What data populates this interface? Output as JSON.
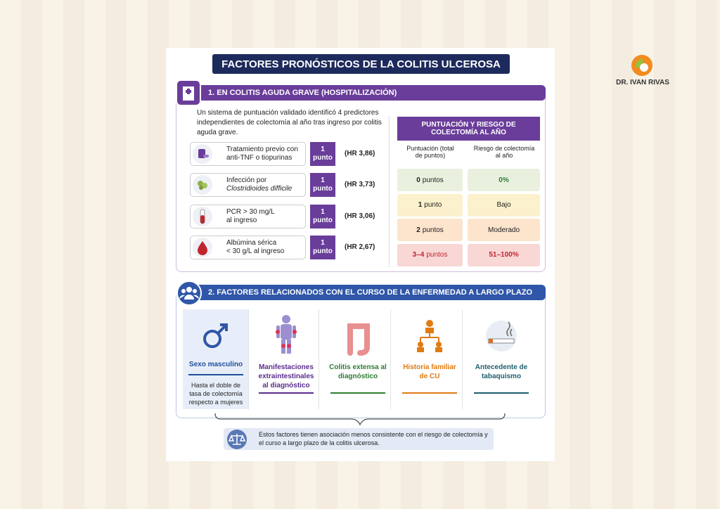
{
  "title": "FACTORES PRONÓSTICOS DE LA COLITIS ULCEROSA",
  "logo": {
    "name": "DR. IVAN RIVAS"
  },
  "section1": {
    "heading": "1. EN COLITIS AGUDA GRAVE (HOSPITALIZACIÓN)",
    "intro": "Un sistema de puntuación validado identificó 4 predictores independientes de colectomía al año tras ingreso por colitis aguda grave.",
    "predictors": [
      {
        "lines": [
          "Tratamiento previo con",
          "anti-TNF o tiopurinas"
        ],
        "points": "1 punto",
        "hr": "(HR 3,86)"
      },
      {
        "lines": [
          "Infección por",
          "Clostridioides difficile"
        ],
        "points": "1 punto",
        "hr": "(HR 3,73)"
      },
      {
        "lines": [
          "PCR > 30 mg/L",
          "al ingreso"
        ],
        "points": "1 punto",
        "hr": "(HR 3,06)"
      },
      {
        "lines": [
          "Albúmina sérica",
          "< 30 g/L al ingreso"
        ],
        "points": "1 punto",
        "hr": "(HR 2,67)"
      }
    ],
    "table": {
      "title": "PUNTUACIÓN Y RIESGO DE COLECTOMÍA AL AÑO",
      "columns": [
        "Puntuación (total de puntos)",
        "Riesgo de colectomía al año"
      ],
      "rows": [
        {
          "number": "0",
          "unit": "puntos",
          "risk": "0%"
        },
        {
          "number": "1",
          "unit": "punto",
          "risk": "Bajo"
        },
        {
          "number": "2",
          "unit": "puntos",
          "risk": "Moderado"
        },
        {
          "number": "3–4",
          "unit": "puntos",
          "risk": "51–100%"
        }
      ]
    }
  },
  "section2": {
    "heading": "2. FACTORES RELACIONADOS CON EL CURSO DE LA ENFERMEDAD A LARGO PLAZO",
    "factors": [
      {
        "title": "Sexo masculino",
        "description": "Hasta el doble de tasa de colectomía respecto a mujeres"
      },
      {
        "title": "Manifestaciones extraintestinales al diagnóstico"
      },
      {
        "title": "Colitis extensa al diagnóstico"
      },
      {
        "title": "Historia familiar de CU"
      },
      {
        "title": "Antecedente de tabaquismo"
      }
    ],
    "note": "Estos factores tienen asociación menos consistente con el riesgo de colectomía y el curso a largo plazo de la colitis ulcerosa."
  }
}
